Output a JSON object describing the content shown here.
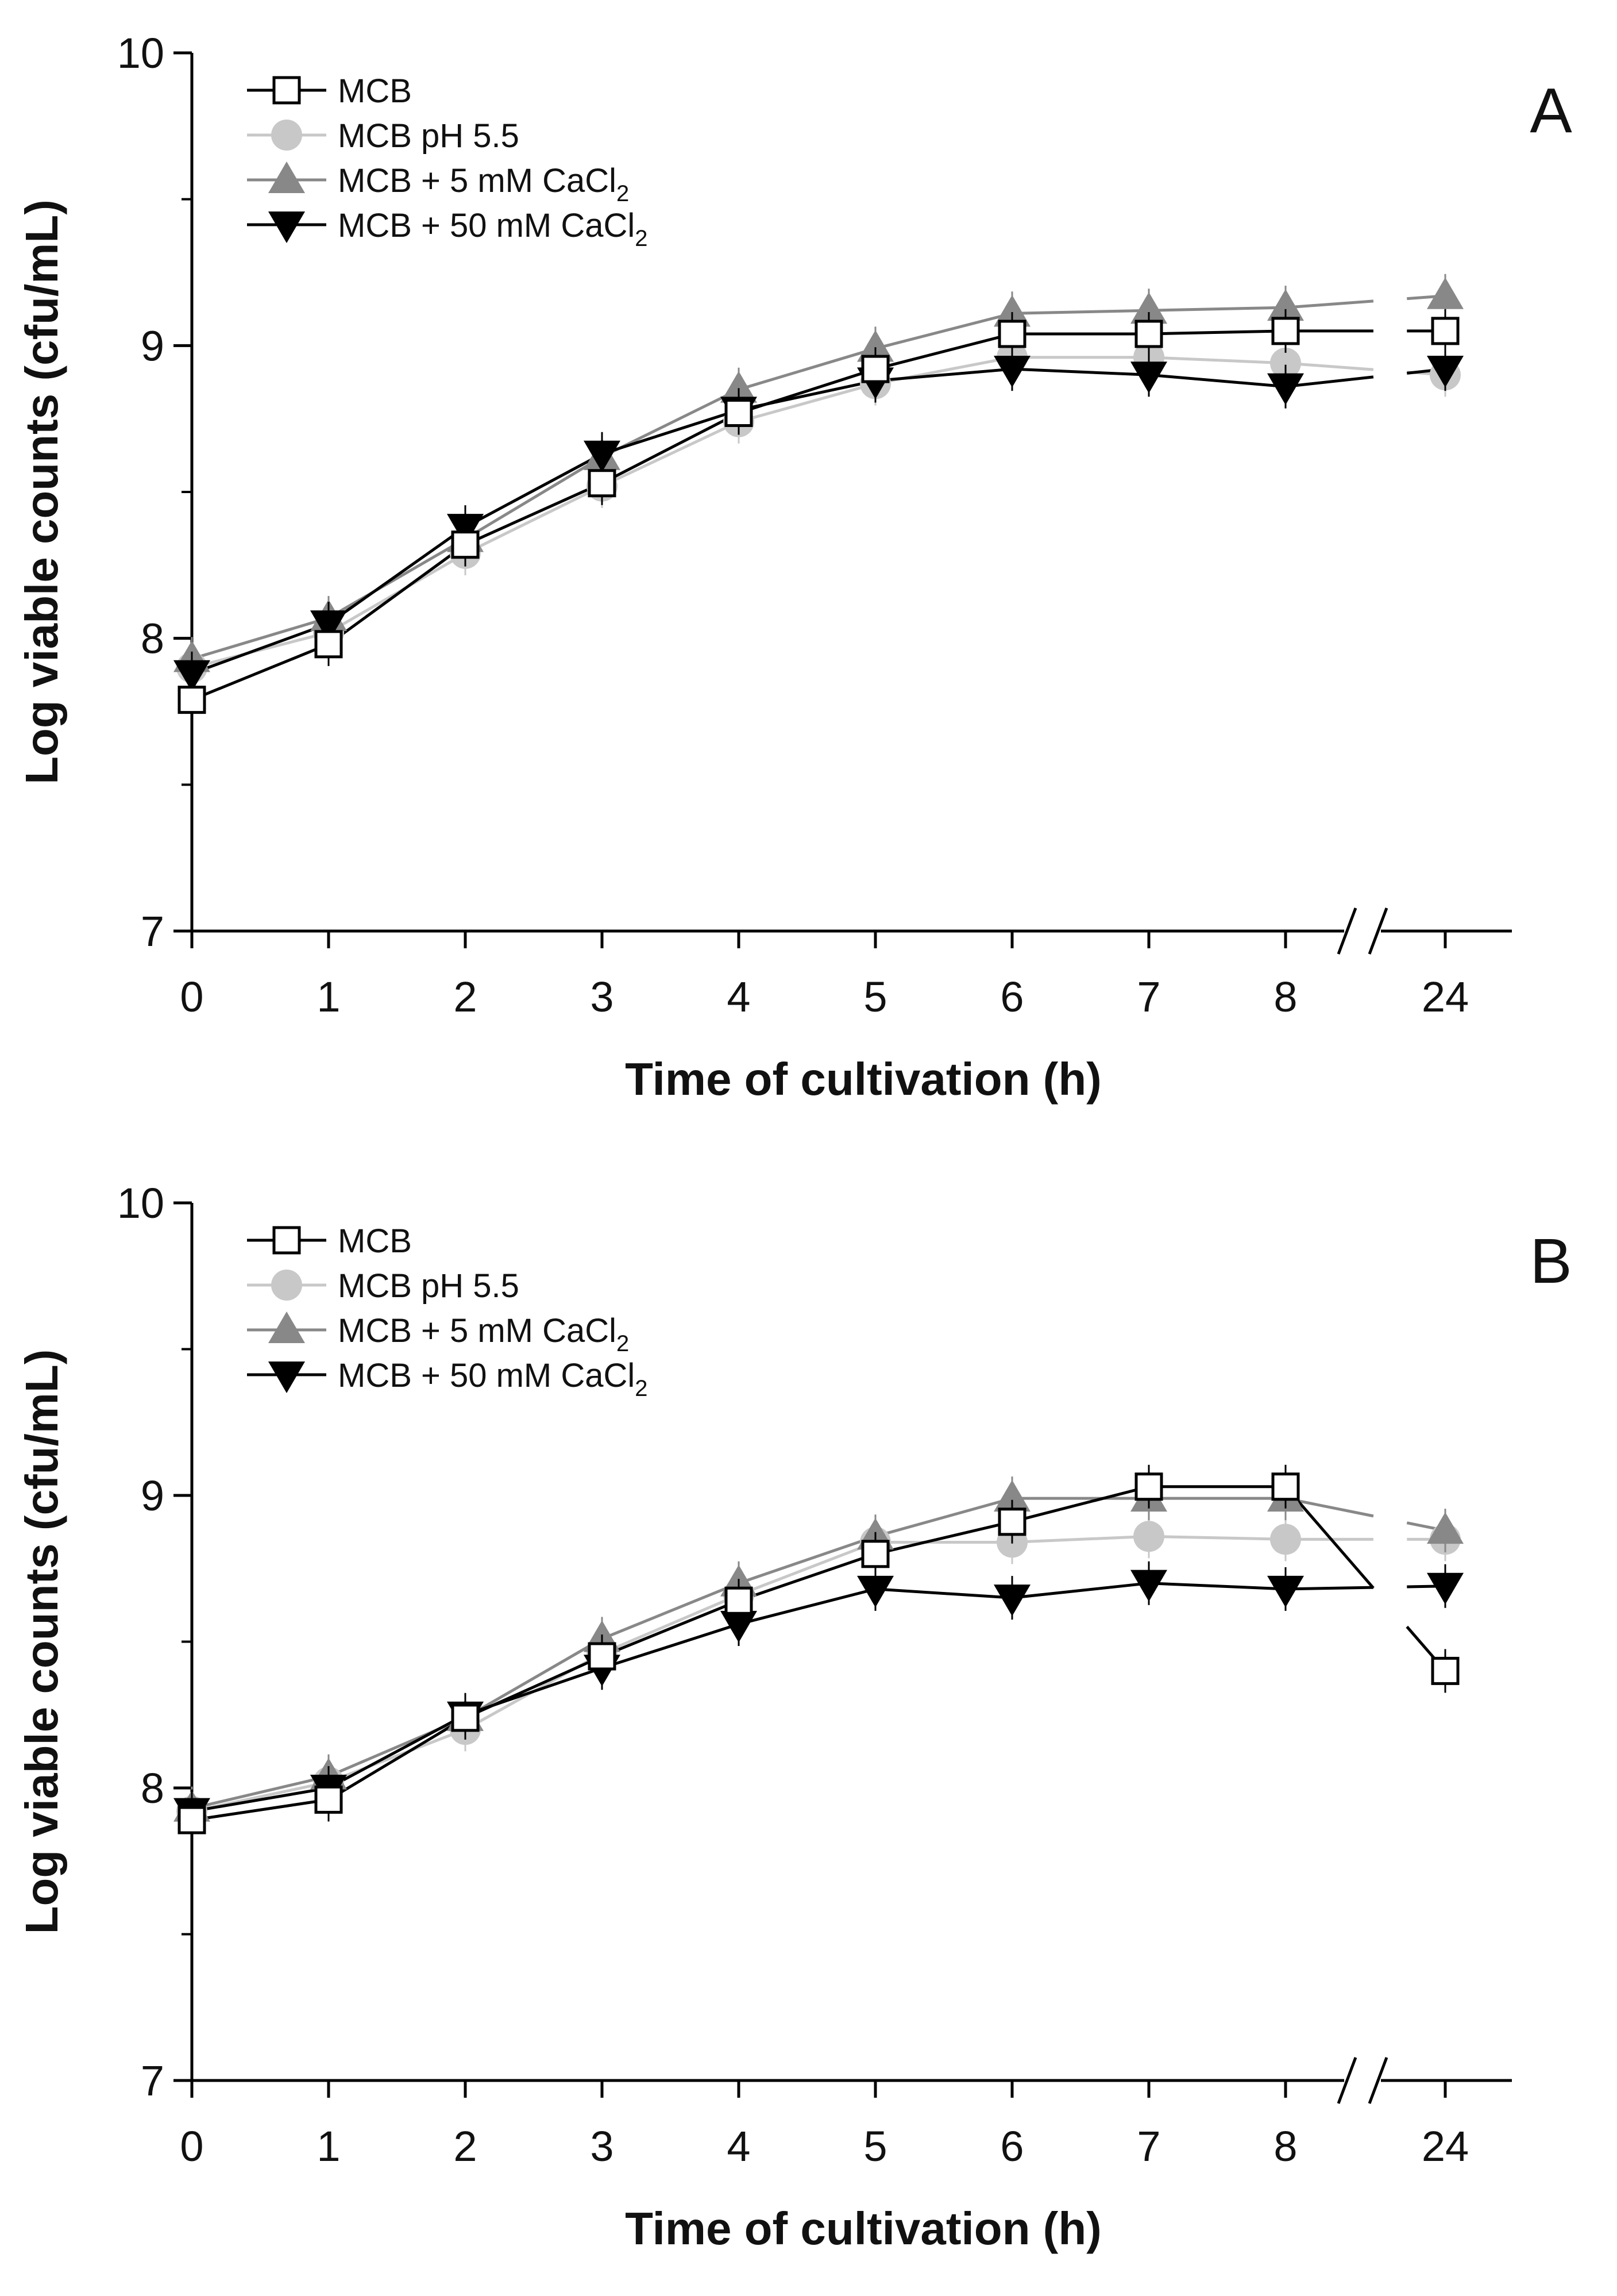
{
  "chart_data": [
    {
      "type": "line",
      "panel": "A",
      "xlabel": "Time of cultivation (h)",
      "ylabel": "Log viable counts (cfu/mL)",
      "ylim": [
        7,
        10
      ],
      "yticks": [
        "7",
        "8",
        "9",
        "10"
      ],
      "x_tick_labels": [
        "0",
        "1",
        "2",
        "3",
        "4",
        "5",
        "6",
        "7",
        "8",
        "24"
      ],
      "x": [
        0,
        1,
        2,
        3,
        4,
        5,
        6,
        7,
        8,
        24
      ],
      "axis_break": "between 8 and 24",
      "legend_position": "top-left",
      "series": [
        {
          "name": "MCB",
          "subscript": "",
          "marker": "open-square",
          "color": "#000000",
          "values": [
            7.79,
            7.98,
            8.32,
            8.53,
            8.77,
            8.92,
            9.04,
            9.04,
            9.05,
            9.05
          ]
        },
        {
          "name": "MCB pH 5.5",
          "subscript": "",
          "marker": "circle",
          "color": "#c8c8c8",
          "values": [
            7.9,
            8.02,
            8.29,
            8.52,
            8.74,
            8.87,
            8.96,
            8.96,
            8.94,
            8.9
          ]
        },
        {
          "name": "MCB + 5 mM CaCl",
          "subscript": "2",
          "marker": "triangle-up",
          "color": "#888888",
          "values": [
            7.93,
            8.07,
            8.34,
            8.62,
            8.85,
            8.99,
            9.11,
            9.12,
            9.13,
            9.17
          ]
        },
        {
          "name": "MCB + 50 mM CaCl",
          "subscript": "2",
          "marker": "triangle-down",
          "color": "#000000",
          "values": [
            7.88,
            8.05,
            8.38,
            8.63,
            8.78,
            8.88,
            8.92,
            8.9,
            8.86,
            8.92
          ]
        }
      ]
    },
    {
      "type": "line",
      "panel": "B",
      "xlabel": "Time of cultivation (h)",
      "ylabel": "Log viable counts (cfu/mL)",
      "ylim": [
        7,
        10
      ],
      "yticks": [
        "7",
        "8",
        "9",
        "10"
      ],
      "x_tick_labels": [
        "0",
        "1",
        "2",
        "3",
        "4",
        "5",
        "6",
        "7",
        "8",
        "24"
      ],
      "x": [
        0,
        1,
        2,
        3,
        4,
        5,
        6,
        7,
        8,
        24
      ],
      "axis_break": "between 8 and 24",
      "legend_position": "top-left",
      "series": [
        {
          "name": "MCB",
          "subscript": "",
          "marker": "open-square",
          "color": "#000000",
          "values": [
            7.89,
            7.96,
            8.24,
            8.45,
            8.64,
            8.8,
            8.91,
            9.03,
            9.03,
            8.4
          ]
        },
        {
          "name": "MCB pH 5.5",
          "subscript": "",
          "marker": "circle",
          "color": "#c8c8c8",
          "values": [
            7.92,
            8.02,
            8.2,
            8.46,
            8.66,
            8.84,
            8.84,
            8.86,
            8.85,
            8.85
          ]
        },
        {
          "name": "MCB + 5 mM CaCl",
          "subscript": "2",
          "marker": "triangle-up",
          "color": "#888888",
          "values": [
            7.93,
            8.04,
            8.24,
            8.51,
            8.7,
            8.86,
            8.99,
            8.99,
            8.99,
            8.88
          ]
        },
        {
          "name": "MCB + 50 mM CaCl",
          "subscript": "2",
          "marker": "triangle-down",
          "color": "#000000",
          "values": [
            7.92,
            8.0,
            8.25,
            8.41,
            8.56,
            8.68,
            8.65,
            8.7,
            8.68,
            8.69
          ]
        }
      ]
    }
  ]
}
